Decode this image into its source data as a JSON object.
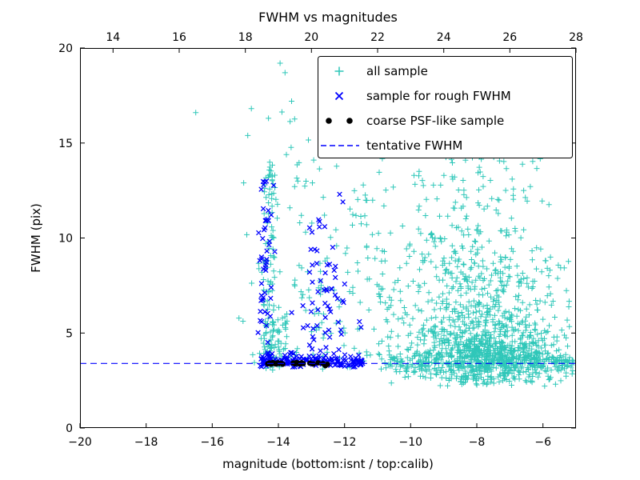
{
  "chart_data": {
    "type": "scatter",
    "title": "FWHM vs magnitudes",
    "xlabel": "magnitude (bottom:isnt / top:calib)",
    "ylabel": "FWHM (pix)",
    "xlim": [
      -20,
      -5
    ],
    "ylim": [
      0,
      20
    ],
    "grid": false,
    "x_ticks_bottom": {
      "values": [
        -20,
        -18,
        -16,
        -14,
        -12,
        -10,
        -8,
        -6
      ],
      "labels": [
        "−20",
        "−18",
        "−16",
        "−14",
        "−12",
        "−10",
        "−8",
        "−6"
      ]
    },
    "x_ticks_top": {
      "values": [
        -19,
        -17,
        -15,
        -13,
        -11,
        -9,
        -7,
        -5
      ],
      "labels": [
        "14",
        "16",
        "18",
        "20",
        "22",
        "24",
        "26",
        "28"
      ],
      "calib_offset": 33
    },
    "y_ticks": {
      "values": [
        0,
        5,
        10,
        15,
        20
      ],
      "labels": [
        "0",
        "5",
        "10",
        "15",
        "20"
      ]
    },
    "tentative_fwhm_y": 3.4,
    "tentative_fwhm_color": "#0000ff",
    "seed": 42,
    "legend": {
      "position": "upper right",
      "entries": [
        {
          "label": "all sample",
          "marker": "plus",
          "color": "#2fc7b9",
          "n_markers": 1
        },
        {
          "label": "sample for rough FWHM",
          "marker": "x",
          "color": "#0000ff",
          "n_markers": 1
        },
        {
          "label": "coarse PSF-like sample",
          "marker": "dot",
          "color": "#000000",
          "n_markers": 2
        },
        {
          "label": "tentative FWHM",
          "marker": "dash",
          "color": "#0000ff",
          "n_markers": 1
        }
      ]
    },
    "series": [
      {
        "name": "all sample",
        "marker": "plus",
        "color": "#2fc7b9",
        "clusters": [
          {
            "n": 700,
            "x": {
              "dist": "gauss",
              "mean": -7.6,
              "sd": 1.2,
              "min": -11.0,
              "max": -5.05
            },
            "y": {
              "dist": "gauss",
              "mean": 3.8,
              "sd": 1.0,
              "min": 2.2,
              "max": 8.0
            }
          },
          {
            "n": 250,
            "x": {
              "dist": "gauss",
              "mean": -8.0,
              "sd": 1.0,
              "min": -11.0,
              "max": -5.2
            },
            "y": {
              "dist": "gauss",
              "mean": 6.5,
              "sd": 2.0,
              "min": 2.5,
              "max": 13.0
            }
          },
          {
            "n": 90,
            "x": {
              "dist": "gauss",
              "mean": -8.3,
              "sd": 1.1,
              "min": -10.8,
              "max": -5.6
            },
            "y": {
              "dist": "gauss",
              "mean": 11.0,
              "sd": 2.2,
              "min": 6.0,
              "max": 16.5
            }
          },
          {
            "n": 250,
            "x": {
              "dist": "uniform",
              "min": -10.8,
              "max": -5.05
            },
            "y": {
              "dist": "gauss",
              "mean": 3.4,
              "sd": 0.3,
              "min": 2.4,
              "max": 4.6
            }
          },
          {
            "n": 180,
            "x": {
              "dist": "uniform",
              "min": -11.0,
              "max": -5.1
            },
            "y": {
              "dist": "uniform",
              "min": 2.6,
              "max": 9.0
            }
          },
          {
            "n": 60,
            "x": {
              "dist": "uniform",
              "min": -10.0,
              "max": -6.0
            },
            "y": {
              "dist": "uniform",
              "min": 9.0,
              "max": 15.5
            }
          },
          {
            "n": 90,
            "x": {
              "dist": "gauss",
              "mean": -14.25,
              "sd": 0.12,
              "min": -14.6,
              "max": -13.9
            },
            "y": {
              "dist": "uniform",
              "min": 3.1,
              "max": 14.5
            }
          },
          {
            "n": 70,
            "x": {
              "dist": "gauss",
              "mean": -14.1,
              "sd": 0.25,
              "min": -14.6,
              "max": -13.5
            },
            "y": {
              "dist": "gauss",
              "mean": 4.3,
              "sd": 0.9,
              "min": 2.9,
              "max": 7.0
            }
          },
          {
            "n": 110,
            "x": {
              "dist": "uniform",
              "min": -13.6,
              "max": -10.6
            },
            "y": {
              "dist": "uniform",
              "min": 3.0,
              "max": 13.0
            }
          },
          {
            "n": 60,
            "x": {
              "dist": "uniform",
              "min": -15.2,
              "max": -10.8
            },
            "y": {
              "dist": "uniform",
              "min": 2.8,
              "max": 17.0
            }
          },
          {
            "n": 25,
            "x": {
              "dist": "uniform",
              "min": -14.0,
              "max": -5.5
            },
            "y": {
              "dist": "uniform",
              "min": 15.0,
              "max": 19.3
            }
          }
        ],
        "points": [
          [
            -16.5,
            16.6
          ],
          [
            -13.95,
            19.2
          ],
          [
            -13.8,
            18.7
          ],
          [
            -13.6,
            17.2
          ],
          [
            -12.35,
            17.6
          ],
          [
            -15.05,
            12.9
          ],
          [
            -14.3,
            16.3
          ],
          [
            -11.2,
            14.8
          ],
          [
            -5.15,
            3.2
          ],
          [
            -5.3,
            2.9
          ]
        ]
      },
      {
        "name": "sample for rough FWHM",
        "marker": "x",
        "color": "#0000ff",
        "clusters": [
          {
            "n": 55,
            "x": {
              "dist": "gauss",
              "mean": -14.4,
              "sd": 0.1,
              "min": -14.65,
              "max": -14.1
            },
            "y": {
              "dist": "uniform",
              "min": 3.3,
              "max": 13.0
            }
          },
          {
            "n": 140,
            "x": {
              "dist": "uniform",
              "min": -14.55,
              "max": -11.45
            },
            "y": {
              "dist": "gauss",
              "mean": 3.5,
              "sd": 0.18,
              "min": 3.2,
              "max": 4.2
            }
          },
          {
            "n": 45,
            "x": {
              "dist": "gauss",
              "mean": -12.7,
              "sd": 0.45,
              "min": -13.6,
              "max": -11.8
            },
            "y": {
              "dist": "gauss",
              "mean": 5.5,
              "sd": 1.6,
              "min": 3.4,
              "max": 10.5
            }
          },
          {
            "n": 18,
            "x": {
              "dist": "uniform",
              "min": -13.1,
              "max": -12.2
            },
            "y": {
              "dist": "uniform",
              "min": 7.0,
              "max": 11.0
            }
          }
        ],
        "points": [
          [
            -12.15,
            12.3
          ],
          [
            -12.05,
            11.9
          ],
          [
            -12.6,
            10.6
          ],
          [
            -11.55,
            5.6
          ],
          [
            -11.5,
            5.3
          ],
          [
            -14.45,
            12.8
          ]
        ]
      },
      {
        "name": "coarse PSF-like sample",
        "marker": "dot",
        "color": "#000000",
        "clusters": [],
        "points": [
          [
            -14.32,
            3.38
          ],
          [
            -14.27,
            3.42
          ],
          [
            -14.22,
            3.36
          ],
          [
            -14.17,
            3.44
          ],
          [
            -14.12,
            3.4
          ],
          [
            -14.07,
            3.37
          ],
          [
            -14.02,
            3.43
          ],
          [
            -13.97,
            3.39
          ],
          [
            -13.92,
            3.41
          ],
          [
            -13.87,
            3.36
          ],
          [
            -13.55,
            3.42
          ],
          [
            -13.5,
            3.38
          ],
          [
            -13.45,
            3.44
          ],
          [
            -13.4,
            3.4
          ],
          [
            -13.35,
            3.37
          ],
          [
            -13.3,
            3.43
          ],
          [
            -13.25,
            3.39
          ],
          [
            -13.05,
            3.41
          ],
          [
            -12.95,
            3.37
          ],
          [
            -12.8,
            3.43
          ],
          [
            -12.65,
            3.39
          ],
          [
            -12.58,
            3.28
          ],
          [
            -12.52,
            3.35
          ]
        ]
      }
    ]
  }
}
